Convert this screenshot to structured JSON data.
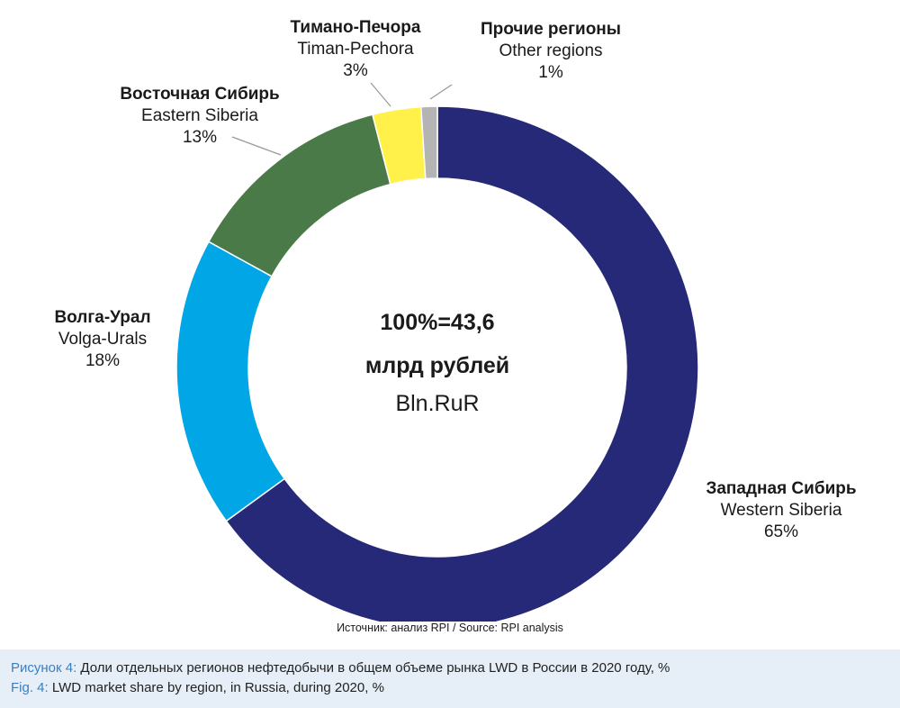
{
  "chart_data": {
    "type": "pie",
    "subtype": "donut",
    "center_text": [
      "100%=43,6",
      "млрд рублей",
      "Bln.RuR"
    ],
    "segments": [
      {
        "label_ru": "Западная Сибирь",
        "label_en": "Western Siberia",
        "value": 65,
        "value_label": "65%",
        "color": "#262878"
      },
      {
        "label_ru": "Волга-Урал",
        "label_en": "Volga-Urals",
        "value": 18,
        "value_label": "18%",
        "color": "#00a6e6"
      },
      {
        "label_ru": "Восточная Сибирь",
        "label_en": "Eastern Siberia",
        "value": 13,
        "value_label": "13%",
        "color": "#4b7a49"
      },
      {
        "label_ru": "Тимано-Печора",
        "label_en": "Timan-Pechora",
        "value": 3,
        "value_label": "3%",
        "color": "#fff04a"
      },
      {
        "label_ru": "Прочие регионы",
        "label_en": "Other regions",
        "value": 1,
        "value_label": "1%",
        "color": "#b4b4b4"
      }
    ]
  },
  "source": "Источник: анализ RPI / Source: RPI analysis",
  "caption": {
    "ru_prefix": "Рисунок 4:",
    "ru_text": " Доли отдельных регионов нефтедобычи в общем объеме рынка LWD в России в 2020 году, %",
    "en_prefix": "Fig. 4:",
    "en_text": " LWD market share by region, in Russia, during 2020, %"
  }
}
